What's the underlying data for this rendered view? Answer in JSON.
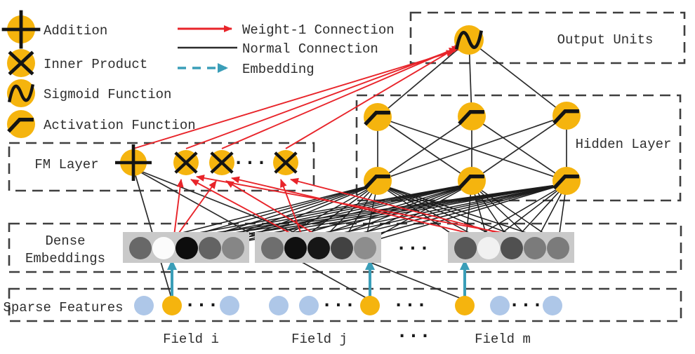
{
  "title": "DeepFM architecture diagram",
  "legend": {
    "shapes": [
      {
        "icon": "addition-icon",
        "glyph": "plus",
        "label": "Addition"
      },
      {
        "icon": "inner-product-icon",
        "glyph": "cross",
        "label": "Inner Product"
      },
      {
        "icon": "sigmoid-function-icon",
        "glyph": "sigmoid",
        "label": "Sigmoid Function"
      },
      {
        "icon": "activation-function-icon",
        "glyph": "activation",
        "label": "Activation Function"
      }
    ],
    "lines": [
      {
        "name": "weight-1-connection",
        "label": "Weight-1 Connection",
        "color": "#e8242a",
        "style": "arrow"
      },
      {
        "name": "normal-connection",
        "label": "Normal Connection",
        "color": "#2b2b2b",
        "style": "solid"
      },
      {
        "name": "embedding",
        "label": "Embedding",
        "color": "#3a9eb8",
        "style": "dashed-arrow"
      }
    ]
  },
  "layers": {
    "output": {
      "label": "Output Units"
    },
    "hidden": {
      "label": "Hidden Layer"
    },
    "fm": {
      "label": "FM Layer"
    },
    "dense": {
      "label_line1": "Dense",
      "label_line2": "Embeddings"
    },
    "sparse": {
      "label": "Sparse Features"
    }
  },
  "fields": [
    {
      "label": "Field i"
    },
    {
      "label": "Field j"
    },
    {
      "label": "···"
    },
    {
      "label": "Field m"
    }
  ],
  "ellipsis": "···",
  "colors": {
    "node_yellow": "#f5b40e",
    "glyph_black": "#141414",
    "sparse_inactive": "#aec7e8",
    "sparse_active": "#f5b40e",
    "red": "#e8242a",
    "black_line": "#2b2b2b",
    "mesh_line": "#1c1c1c",
    "teal": "#3a9eb8",
    "box_border": "#3f3f3f",
    "group_bg": "#c9c9c9",
    "text": "#2e2e2e"
  },
  "embeddings": {
    "groups": [
      {
        "circle_colors": [
          "#686868",
          "#fbfbfb",
          "#0d0d0d",
          "#636363",
          "#868686"
        ]
      },
      {
        "circle_colors": [
          "#6e6e6e",
          "#101010",
          "#161616",
          "#424242",
          "#8d8d8d"
        ]
      },
      {
        "circle_colors": [
          "#585858",
          "#f1f1f1",
          "#505050",
          "#7b7b7b",
          "#7b7b7b"
        ]
      }
    ]
  },
  "sparse_sequence": [
    "inactive",
    "active",
    "dots",
    "inactive",
    "inactive",
    "inactive",
    "dots",
    "active",
    "dots",
    "active",
    "inactive",
    "dots",
    "inactive"
  ]
}
